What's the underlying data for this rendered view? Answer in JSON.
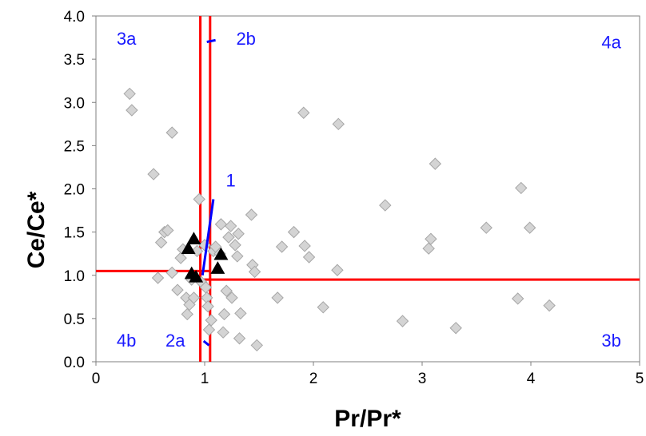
{
  "chart_data": {
    "type": "scatter",
    "xlabel": "Pr/Pr*",
    "ylabel": "Ce/Ce*",
    "xlim": [
      0,
      5
    ],
    "ylim": [
      0,
      4.0
    ],
    "x_ticks": [
      "0",
      "1",
      "2",
      "3",
      "4",
      "5"
    ],
    "y_ticks": [
      "0.0",
      "0.5",
      "1.0",
      "1.5",
      "2.0",
      "2.5",
      "3.0",
      "3.5",
      "4.0"
    ],
    "grid": false,
    "legend": "none",
    "series": [
      {
        "marker": "diamond",
        "color": "#d4d4d4",
        "edge_color": "#a6a6a6",
        "points": [
          [
            0.31,
            3.1
          ],
          [
            0.33,
            2.91
          ],
          [
            0.53,
            2.17
          ],
          [
            0.7,
            2.65
          ],
          [
            0.57,
            0.97
          ],
          [
            0.6,
            1.38
          ],
          [
            0.63,
            1.5
          ],
          [
            0.66,
            1.52
          ],
          [
            0.7,
            1.03
          ],
          [
            0.75,
            0.83
          ],
          [
            0.78,
            1.2
          ],
          [
            0.8,
            1.3
          ],
          [
            0.83,
            0.74
          ],
          [
            0.84,
            0.55
          ],
          [
            0.86,
            0.66
          ],
          [
            0.88,
            0.95
          ],
          [
            0.9,
            0.74
          ],
          [
            0.93,
            1.28
          ],
          [
            0.95,
            1.88
          ],
          [
            0.97,
            0.92
          ],
          [
            1.0,
            1.35
          ],
          [
            1.01,
            0.86
          ],
          [
            1.02,
            0.74
          ],
          [
            1.03,
            0.64
          ],
          [
            1.04,
            0.37
          ],
          [
            1.06,
            0.48
          ],
          [
            1.08,
            1.28
          ],
          [
            1.1,
            1.33
          ],
          [
            1.14,
            1.25
          ],
          [
            1.15,
            1.59
          ],
          [
            1.17,
            0.34
          ],
          [
            1.18,
            0.55
          ],
          [
            1.2,
            0.82
          ],
          [
            1.22,
            1.44
          ],
          [
            1.24,
            1.57
          ],
          [
            1.25,
            0.74
          ],
          [
            1.28,
            1.35
          ],
          [
            1.3,
            1.22
          ],
          [
            1.31,
            1.48
          ],
          [
            1.32,
            0.27
          ],
          [
            1.33,
            0.56
          ],
          [
            1.43,
            1.7
          ],
          [
            1.44,
            1.12
          ],
          [
            1.46,
            1.04
          ],
          [
            1.48,
            0.19
          ],
          [
            1.67,
            0.74
          ],
          [
            1.71,
            1.33
          ],
          [
            1.82,
            1.5
          ],
          [
            1.91,
            2.88
          ],
          [
            1.92,
            1.34
          ],
          [
            1.96,
            1.21
          ],
          [
            2.09,
            0.63
          ],
          [
            2.22,
            1.06
          ],
          [
            2.23,
            2.75
          ],
          [
            2.66,
            1.81
          ],
          [
            2.82,
            0.47
          ],
          [
            3.06,
            1.31
          ],
          [
            3.08,
            1.42
          ],
          [
            3.12,
            2.29
          ],
          [
            3.31,
            0.39
          ],
          [
            3.59,
            1.55
          ],
          [
            3.88,
            0.73
          ],
          [
            3.91,
            2.01
          ],
          [
            3.99,
            1.55
          ],
          [
            4.17,
            0.65
          ]
        ]
      },
      {
        "marker": "triangle",
        "color": "#000000",
        "points": [
          [
            0.85,
            1.31
          ],
          [
            0.9,
            1.42
          ],
          [
            0.88,
            1.02
          ],
          [
            0.92,
            0.98
          ],
          [
            1.12,
            1.08
          ],
          [
            1.15,
            1.24
          ]
        ]
      }
    ],
    "reference_lines": [
      {
        "orientation": "vertical",
        "value": 0.96,
        "color": "#ff0000"
      },
      {
        "orientation": "vertical",
        "value": 1.05,
        "color": "#ff0000"
      },
      {
        "orientation": "horizontal",
        "value": 1.05,
        "from_x": 0,
        "to_x": 1.05,
        "color": "#ff0000"
      },
      {
        "orientation": "horizontal",
        "value": 0.95,
        "from_x": 0.96,
        "to_x": 5,
        "color": "#ff0000"
      }
    ],
    "pointer_lines": [
      {
        "from": [
          1.08,
          1.88
        ],
        "to": [
          0.98,
          1.0
        ],
        "color": "#0000ff"
      },
      {
        "from": [
          1.02,
          3.7
        ],
        "to": [
          1.1,
          3.72
        ],
        "color": "#0000ff"
      },
      {
        "from": [
          0.99,
          0.24
        ],
        "to": [
          1.04,
          0.19
        ],
        "color": "#0000ff"
      }
    ],
    "annotations": [
      {
        "text": "3a",
        "x": 0.28,
        "y": 3.74,
        "color": "#1a1aff"
      },
      {
        "text": "2b",
        "x": 1.38,
        "y": 3.74,
        "color": "#1a1aff"
      },
      {
        "text": "4a",
        "x": 4.74,
        "y": 3.7,
        "color": "#1a1aff"
      },
      {
        "text": "1",
        "x": 1.24,
        "y": 2.1,
        "color": "#1a1aff"
      },
      {
        "text": "4b",
        "x": 0.28,
        "y": 0.25,
        "color": "#1a1aff"
      },
      {
        "text": "2a",
        "x": 0.73,
        "y": 0.25,
        "color": "#1a1aff"
      },
      {
        "text": "3b",
        "x": 4.74,
        "y": 0.25,
        "color": "#1a1aff"
      }
    ]
  }
}
